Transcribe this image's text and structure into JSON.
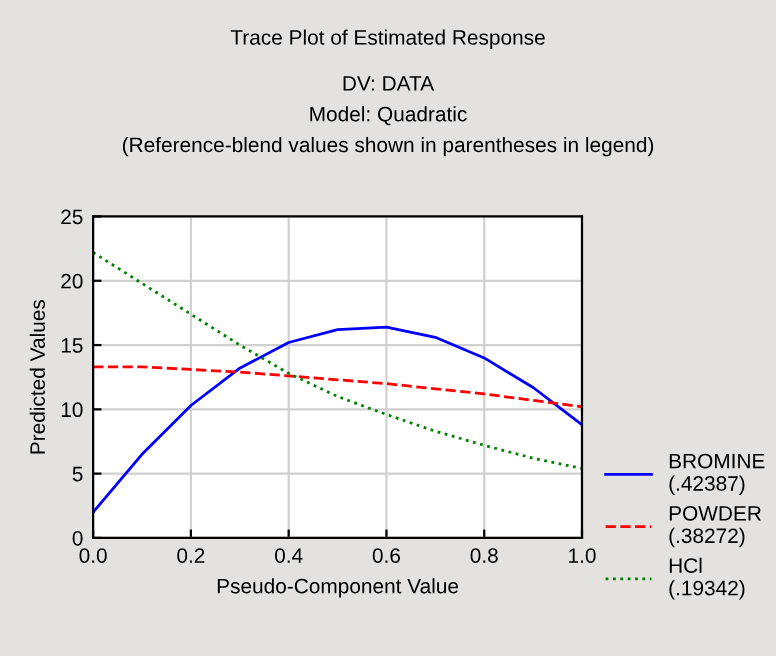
{
  "chart_data": {
    "type": "line",
    "title": "Trace Plot of Estimated Response",
    "subtitle": "DV: DATA\nModel: Quadratic\n(Reference-blend values shown in parentheses in legend)",
    "xlabel": "Pseudo-Component Value",
    "ylabel": "Predicted Values",
    "x": [
      0.0,
      0.1,
      0.2,
      0.3,
      0.4,
      0.5,
      0.6,
      0.7,
      0.8,
      0.9,
      1.0
    ],
    "series": [
      {
        "name": "BROMINE\n(.42387)",
        "color": "#0000ff",
        "line_style": "solid",
        "values": [
          2.0,
          6.5,
          10.3,
          13.2,
          15.2,
          16.2,
          16.4,
          15.6,
          14.0,
          11.7,
          8.8
        ]
      },
      {
        "name": "POWDER\n(.38272)",
        "color": "#ff0000",
        "line_style": "dashed",
        "values": [
          13.3,
          13.3,
          13.1,
          12.9,
          12.6,
          12.3,
          12.0,
          11.6,
          11.2,
          10.7,
          10.2
        ]
      },
      {
        "name": "HCl\n(.19342)",
        "color": "#008000",
        "line_style": "dotted",
        "values": [
          22.2,
          19.8,
          17.4,
          15.0,
          12.8,
          11.0,
          9.6,
          8.3,
          7.2,
          6.2,
          5.4
        ]
      }
    ],
    "xlim": [
      0.0,
      1.0
    ],
    "ylim": [
      0,
      25
    ],
    "xticks": [
      {
        "value": 0,
        "label": "0.0"
      },
      0.2,
      0.4,
      0.6,
      0.8,
      {
        "value": 1,
        "label": "1.0"
      }
    ],
    "yticks": [
      0,
      5,
      10,
      15,
      20,
      25
    ],
    "grid": true,
    "legend": "right"
  }
}
